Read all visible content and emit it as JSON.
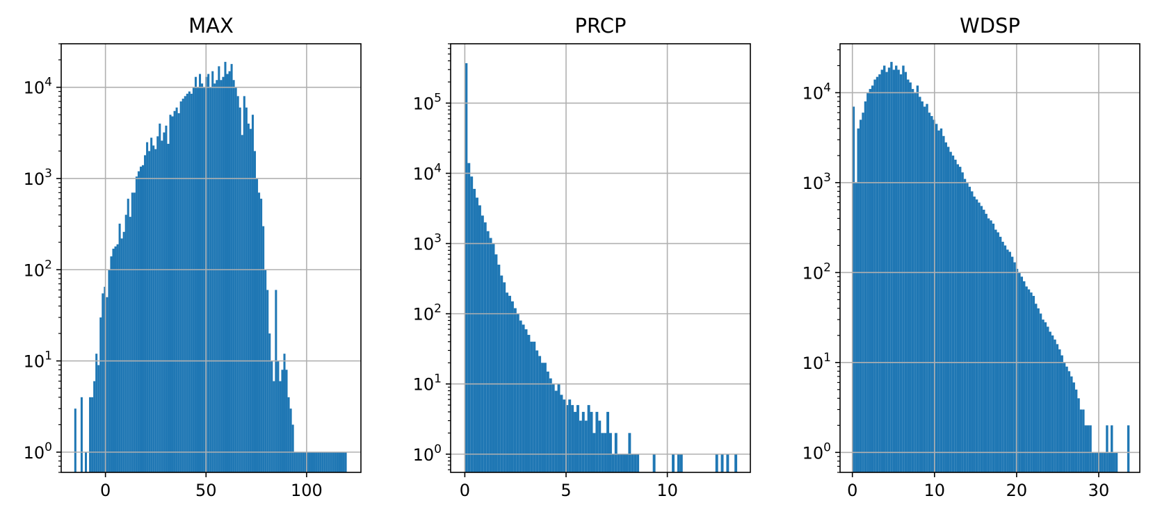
{
  "chart_data": [
    {
      "type": "histogram",
      "title": "MAX",
      "xlabel": "",
      "ylabel": "",
      "yscale": "log",
      "xlim": [
        -22,
        127
      ],
      "ylim": [
        0.6,
        30000
      ],
      "xticks": [
        0,
        50,
        100
      ],
      "yticks": [
        1,
        10,
        100,
        1000,
        10000
      ],
      "grid": true,
      "color": "#1f77b4",
      "bins": {
        "x_start": -15.5,
        "bin_width": 1.05,
        "counts": [
          3,
          0,
          0,
          4,
          0,
          1,
          0,
          4,
          4,
          6,
          12,
          9,
          30,
          55,
          65,
          50,
          100,
          140,
          170,
          180,
          190,
          320,
          220,
          260,
          400,
          600,
          380,
          700,
          700,
          1050,
          1200,
          1350,
          1400,
          1800,
          2500,
          2000,
          2800,
          2300,
          2100,
          2900,
          4000,
          2600,
          3200,
          3800,
          2400,
          5000,
          4800,
          5500,
          6000,
          5200,
          7000,
          7500,
          8000,
          8500,
          9000,
          8500,
          10000,
          13000,
          10000,
          14000,
          11000,
          10000,
          13000,
          14000,
          10000,
          15000,
          11000,
          12000,
          17000,
          12000,
          13000,
          19000,
          14000,
          15000,
          18000,
          12000,
          10000,
          8000,
          6000,
          3000,
          8000,
          6000,
          4000,
          3500,
          5000,
          2000,
          1000,
          700,
          600,
          300,
          100,
          60,
          20,
          10,
          6,
          60,
          10,
          6,
          8,
          12,
          8,
          4,
          3,
          2,
          1,
          1,
          1,
          1,
          1,
          1,
          1,
          1,
          1,
          1,
          1,
          1,
          1,
          1,
          1,
          1,
          1,
          1,
          1,
          1,
          1,
          1,
          1,
          1,
          1
        ]
      }
    },
    {
      "type": "histogram",
      "title": "PRCP",
      "xlabel": "",
      "ylabel": "",
      "yscale": "log",
      "xlim": [
        -0.7,
        14.1
      ],
      "ylim": [
        0.55,
        700000
      ],
      "xticks": [
        0,
        5,
        10
      ],
      "yticks": [
        1,
        10,
        100,
        1000,
        10000,
        100000
      ],
      "grid": true,
      "color": "#1f77b4",
      "bins": {
        "x_start": 0,
        "bin_width": 0.1345,
        "counts": [
          370000,
          14000,
          9000,
          6000,
          4500,
          3500,
          2500,
          2000,
          1500,
          1200,
          1000,
          700,
          500,
          350,
          280,
          200,
          180,
          150,
          120,
          100,
          80,
          70,
          60,
          50,
          40,
          40,
          30,
          25,
          20,
          20,
          15,
          12,
          10,
          8,
          10,
          7,
          6,
          5,
          6,
          5,
          4,
          5,
          3,
          4,
          3,
          5,
          4,
          2,
          4,
          3,
          2,
          2,
          4,
          2,
          1,
          2,
          1,
          1,
          1,
          1,
          2,
          1,
          1,
          1,
          0,
          0,
          0,
          0,
          0,
          1,
          0,
          0,
          0,
          0,
          0,
          0,
          1,
          0,
          1,
          1,
          0,
          0,
          0,
          0,
          0,
          0,
          0,
          0,
          0,
          0,
          0,
          0,
          1,
          0,
          1,
          0,
          1,
          0,
          0,
          1
        ]
      }
    },
    {
      "type": "histogram",
      "title": "WDSP",
      "xlabel": "",
      "ylabel": "",
      "yscale": "log",
      "xlim": [
        -1.5,
        35
      ],
      "ylim": [
        0.6,
        35000
      ],
      "xticks": [
        0,
        10,
        20,
        30
      ],
      "yticks": [
        1,
        10,
        100,
        1000,
        10000
      ],
      "grid": true,
      "color": "#1f77b4",
      "bins": {
        "x_start": 0,
        "bin_width": 0.2885,
        "counts": [
          7000,
          1000,
          4000,
          5000,
          6000,
          8000,
          10000,
          11000,
          12000,
          14000,
          15000,
          16000,
          18000,
          20000,
          17000,
          19000,
          22000,
          18000,
          20000,
          18000,
          16000,
          20000,
          17000,
          14000,
          13000,
          11000,
          10000,
          12000,
          9000,
          8000,
          7000,
          7500,
          6000,
          5500,
          5000,
          4500,
          3800,
          4000,
          3300,
          2800,
          2500,
          2200,
          2000,
          1800,
          1600,
          1500,
          1300,
          1100,
          1000,
          900,
          800,
          700,
          650,
          600,
          550,
          500,
          450,
          400,
          380,
          350,
          300,
          280,
          250,
          220,
          200,
          180,
          170,
          150,
          130,
          110,
          100,
          90,
          80,
          70,
          65,
          60,
          55,
          45,
          40,
          35,
          30,
          28,
          25,
          22,
          20,
          18,
          16,
          14,
          12,
          10,
          9,
          8,
          7,
          6,
          5,
          4,
          3,
          3,
          2,
          2,
          2,
          1,
          1,
          1,
          1,
          1,
          1,
          2,
          1,
          2,
          1,
          1,
          0,
          0,
          0,
          0,
          2
        ]
      }
    }
  ]
}
